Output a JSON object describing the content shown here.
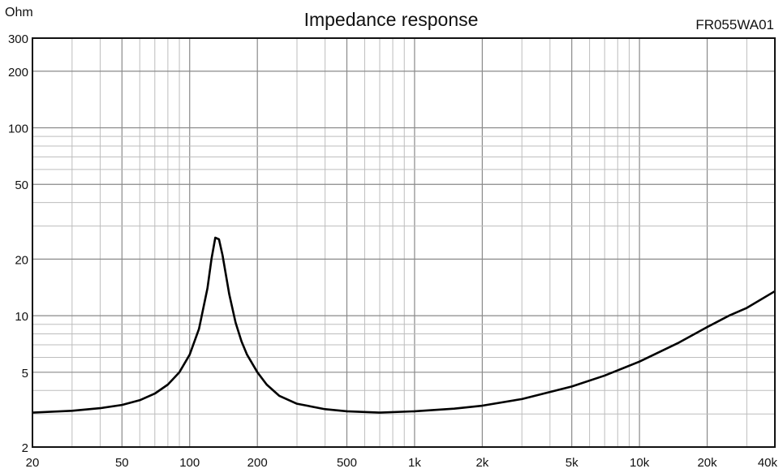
{
  "chart_data": {
    "type": "line",
    "title": "Impedance response",
    "model": "FR055WA01",
    "ylabel": "Ohm",
    "xlabel": "",
    "x_scale": "log",
    "y_scale": "log",
    "xlim": [
      20,
      40000
    ],
    "ylim": [
      2,
      300
    ],
    "x_ticks": [
      {
        "value": 20,
        "label": "20"
      },
      {
        "value": 50,
        "label": "50"
      },
      {
        "value": 100,
        "label": "100"
      },
      {
        "value": 200,
        "label": "200"
      },
      {
        "value": 500,
        "label": "500"
      },
      {
        "value": 1000,
        "label": "1k"
      },
      {
        "value": 2000,
        "label": "2k"
      },
      {
        "value": 5000,
        "label": "5k"
      },
      {
        "value": 10000,
        "label": "10k"
      },
      {
        "value": 20000,
        "label": "20k"
      },
      {
        "value": 40000,
        "label": "40k"
      }
    ],
    "y_ticks": [
      {
        "value": 2,
        "label": "2"
      },
      {
        "value": 5,
        "label": "5"
      },
      {
        "value": 10,
        "label": "10"
      },
      {
        "value": 20,
        "label": "20"
      },
      {
        "value": 50,
        "label": "50"
      },
      {
        "value": 100,
        "label": "100"
      },
      {
        "value": 200,
        "label": "200"
      },
      {
        "value": 300,
        "label": "300"
      }
    ],
    "grid": true,
    "legend": "none",
    "series": [
      {
        "color": "#000000",
        "x": [
          20,
          30,
          40,
          50,
          60,
          70,
          80,
          90,
          100,
          110,
          120,
          125,
          130,
          135,
          140,
          150,
          160,
          170,
          180,
          200,
          220,
          250,
          300,
          400,
          500,
          700,
          1000,
          1500,
          2000,
          3000,
          5000,
          7000,
          10000,
          15000,
          20000,
          25000,
          30000,
          40000
        ],
        "y": [
          3.05,
          3.12,
          3.22,
          3.35,
          3.55,
          3.85,
          4.3,
          5.0,
          6.2,
          8.5,
          14,
          20,
          26,
          25.5,
          21,
          13,
          9.2,
          7.3,
          6.2,
          5.0,
          4.3,
          3.75,
          3.4,
          3.18,
          3.1,
          3.05,
          3.1,
          3.2,
          3.32,
          3.6,
          4.2,
          4.8,
          5.7,
          7.2,
          8.7,
          10.0,
          11.0,
          13.5
        ]
      }
    ]
  }
}
